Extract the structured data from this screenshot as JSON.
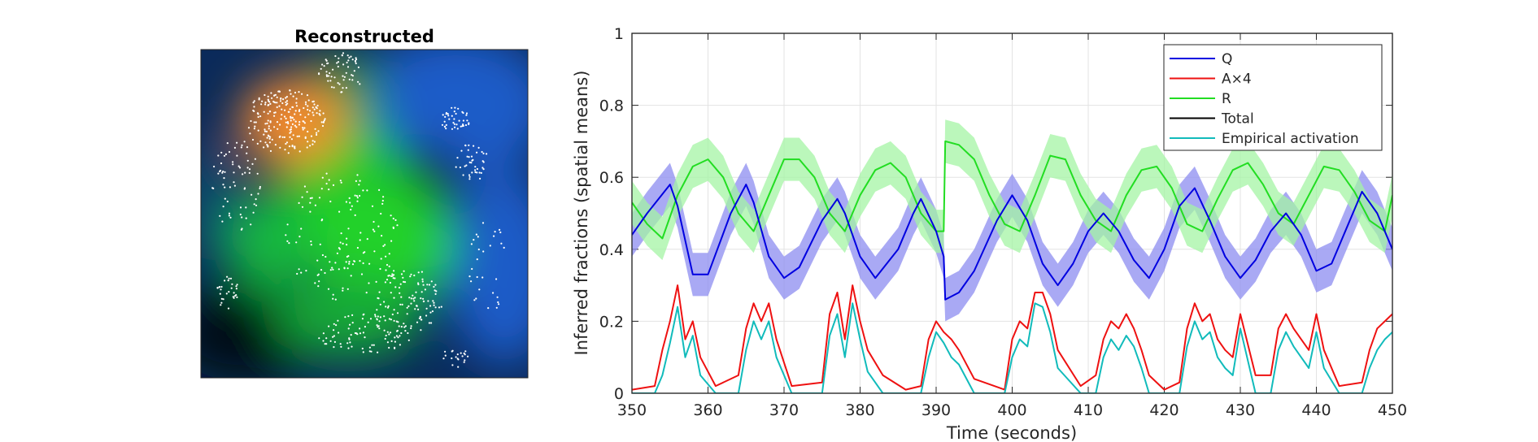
{
  "colors": {
    "Q": "#0000e0",
    "A": "#ee1111",
    "R": "#22dd22",
    "Total": "#000000",
    "Empirical": "#11bbbb",
    "Q_band": "#8c8cf0",
    "R_band": "#a4f4a4"
  },
  "chart_data": [
    {
      "type": "heatmap",
      "title": "Reconstructed",
      "description_colors": [
        "black",
        "blue",
        "green",
        "orange"
      ],
      "grid": false
    },
    {
      "type": "line",
      "xlabel": "Time (seconds)",
      "ylabel": "Inferred fractions (spatial means)",
      "xlim": [
        350,
        450
      ],
      "ylim": [
        0,
        1
      ],
      "xticks": [
        350,
        360,
        370,
        380,
        390,
        400,
        410,
        420,
        430,
        440,
        450
      ],
      "yticks": [
        0,
        0.2,
        0.4,
        0.6,
        0.8,
        1
      ],
      "ytick_labels": [
        "0",
        "0.2",
        "0.4",
        "0.6",
        "0.8",
        "1"
      ],
      "grid": true,
      "legend_position": "top-right",
      "series": [
        {
          "name": "Q",
          "x": [
            350,
            352,
            355,
            356,
            358,
            360,
            363,
            365,
            366,
            368,
            370,
            372,
            375,
            377,
            378,
            380,
            382,
            385,
            387,
            388,
            390,
            391,
            391.2,
            393,
            395,
            398,
            400,
            402,
            404,
            406,
            408,
            410,
            412,
            414,
            416,
            418,
            420,
            422,
            424,
            426,
            428,
            430,
            432,
            434,
            436,
            438,
            440,
            442,
            444,
            446,
            448,
            450
          ],
          "y": [
            0.44,
            0.5,
            0.58,
            0.52,
            0.33,
            0.33,
            0.5,
            0.58,
            0.53,
            0.38,
            0.32,
            0.35,
            0.48,
            0.54,
            0.5,
            0.38,
            0.32,
            0.4,
            0.5,
            0.54,
            0.45,
            0.38,
            0.26,
            0.28,
            0.34,
            0.48,
            0.55,
            0.48,
            0.36,
            0.3,
            0.36,
            0.45,
            0.5,
            0.45,
            0.37,
            0.32,
            0.4,
            0.52,
            0.57,
            0.48,
            0.38,
            0.32,
            0.37,
            0.45,
            0.5,
            0.44,
            0.34,
            0.36,
            0.46,
            0.56,
            0.5,
            0.4
          ],
          "band_halfwidth": 0.06
        },
        {
          "name": "A×4",
          "x": [
            350,
            353,
            354,
            355,
            356,
            357,
            358,
            359,
            361,
            364,
            365,
            366,
            367,
            368,
            369,
            371,
            375,
            376,
            377,
            378,
            379,
            380,
            381,
            383,
            386,
            388,
            389,
            390,
            391,
            392,
            393,
            395,
            399,
            400,
            401,
            402,
            403,
            404,
            405,
            406,
            409,
            411,
            412,
            413,
            414,
            415,
            416,
            417,
            418,
            420,
            422,
            423,
            424,
            425,
            426,
            427,
            428,
            429,
            430,
            432,
            434,
            435,
            436,
            437,
            438,
            439,
            440,
            441,
            443,
            446,
            447,
            448,
            449,
            450
          ],
          "y": [
            0.01,
            0.02,
            0.12,
            0.2,
            0.3,
            0.15,
            0.2,
            0.1,
            0.02,
            0.05,
            0.18,
            0.25,
            0.2,
            0.25,
            0.15,
            0.02,
            0.03,
            0.22,
            0.28,
            0.15,
            0.3,
            0.2,
            0.12,
            0.05,
            0.01,
            0.02,
            0.15,
            0.2,
            0.17,
            0.15,
            0.12,
            0.04,
            0.01,
            0.15,
            0.2,
            0.18,
            0.28,
            0.28,
            0.22,
            0.12,
            0.02,
            0.05,
            0.15,
            0.2,
            0.18,
            0.22,
            0.18,
            0.12,
            0.05,
            0.01,
            0.03,
            0.18,
            0.25,
            0.2,
            0.22,
            0.15,
            0.12,
            0.1,
            0.22,
            0.05,
            0.05,
            0.18,
            0.22,
            0.18,
            0.15,
            0.12,
            0.22,
            0.12,
            0.02,
            0.03,
            0.12,
            0.18,
            0.2,
            0.22
          ]
        },
        {
          "name": "R",
          "x": [
            350,
            352,
            354,
            356,
            358,
            360,
            362,
            364,
            366,
            368,
            370,
            372,
            374,
            376,
            378,
            380,
            382,
            384,
            386,
            388,
            390,
            391,
            391.2,
            393,
            395,
            397,
            399,
            401,
            403,
            405,
            407,
            409,
            411,
            413,
            415,
            417,
            419,
            421,
            423,
            425,
            427,
            429,
            431,
            433,
            435,
            437,
            439,
            441,
            443,
            445,
            447,
            449,
            450
          ],
          "y": [
            0.53,
            0.47,
            0.43,
            0.55,
            0.63,
            0.65,
            0.6,
            0.5,
            0.45,
            0.55,
            0.65,
            0.65,
            0.6,
            0.5,
            0.45,
            0.55,
            0.62,
            0.64,
            0.6,
            0.5,
            0.45,
            0.45,
            0.7,
            0.69,
            0.65,
            0.55,
            0.47,
            0.45,
            0.55,
            0.66,
            0.65,
            0.55,
            0.48,
            0.45,
            0.55,
            0.62,
            0.63,
            0.57,
            0.47,
            0.45,
            0.54,
            0.62,
            0.64,
            0.58,
            0.5,
            0.47,
            0.55,
            0.63,
            0.62,
            0.56,
            0.48,
            0.45,
            0.55
          ],
          "band_halfwidth": 0.06
        },
        {
          "name": "Total",
          "x": [],
          "y": []
        },
        {
          "name": "Empirical activation",
          "x": [
            350,
            353,
            354,
            355,
            356,
            357,
            358,
            359,
            361,
            364,
            365,
            366,
            367,
            368,
            369,
            371,
            375,
            376,
            377,
            378,
            379,
            380,
            381,
            383,
            386,
            388,
            389,
            390,
            391,
            392,
            393,
            395,
            399,
            400,
            401,
            402,
            403,
            404,
            405,
            406,
            409,
            411,
            412,
            413,
            414,
            415,
            416,
            417,
            418,
            420,
            422,
            423,
            424,
            425,
            426,
            427,
            428,
            429,
            430,
            432,
            434,
            435,
            436,
            437,
            438,
            439,
            440,
            441,
            443,
            446,
            447,
            448,
            449,
            450
          ],
          "y": [
            0.0,
            0.0,
            0.05,
            0.14,
            0.24,
            0.1,
            0.16,
            0.05,
            0.0,
            0.0,
            0.12,
            0.2,
            0.15,
            0.2,
            0.1,
            0.0,
            0.0,
            0.16,
            0.22,
            0.1,
            0.25,
            0.15,
            0.06,
            0.0,
            0.0,
            0.0,
            0.1,
            0.17,
            0.14,
            0.1,
            0.08,
            0.0,
            0.0,
            0.1,
            0.15,
            0.13,
            0.25,
            0.24,
            0.17,
            0.07,
            0.0,
            0.0,
            0.1,
            0.15,
            0.12,
            0.16,
            0.13,
            0.07,
            0.0,
            0.0,
            0.0,
            0.13,
            0.2,
            0.15,
            0.17,
            0.1,
            0.07,
            0.05,
            0.18,
            0.0,
            0.0,
            0.12,
            0.17,
            0.13,
            0.1,
            0.07,
            0.17,
            0.07,
            0.0,
            0.0,
            0.07,
            0.12,
            0.15,
            0.17
          ]
        }
      ],
      "legend": [
        "Q",
        "A×4",
        "R",
        "Total",
        "Empirical activation"
      ]
    }
  ]
}
